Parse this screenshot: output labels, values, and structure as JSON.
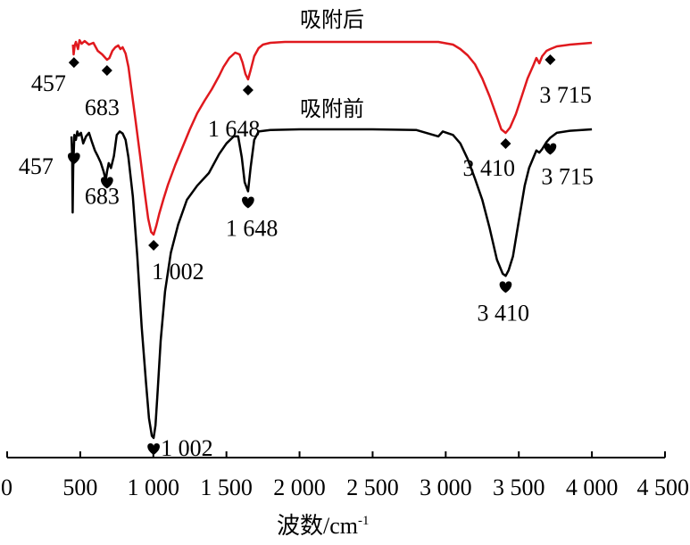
{
  "chart_data": {
    "type": "line",
    "xlabel": "波数/cm",
    "xlabel_sup": "-1",
    "ylabel": "",
    "xlim": [
      0,
      4500
    ],
    "xticks": [
      0,
      500,
      1000,
      1500,
      2000,
      2500,
      3000,
      3500,
      4000,
      4500
    ],
    "xtick_labels": [
      "0",
      "500",
      "1 000",
      "1 500",
      "2 000",
      "2 500",
      "3 000",
      "3 500",
      "4 000",
      "4 500"
    ],
    "grid": false,
    "series": [
      {
        "name": "吸附后",
        "color": "#e0191e",
        "marker": "diamond",
        "marker_color": "#000000",
        "points": [
          [
            450,
            0.05
          ],
          [
            455,
            0.16
          ],
          [
            462,
            0.06
          ],
          [
            470,
            0.02
          ],
          [
            485,
            0.1
          ],
          [
            495,
            0.0
          ],
          [
            510,
            0.04
          ],
          [
            530,
            0.01
          ],
          [
            560,
            0.05
          ],
          [
            590,
            0.03
          ],
          [
            620,
            0.12
          ],
          [
            650,
            0.16
          ],
          [
            683,
            0.22
          ],
          [
            700,
            0.2
          ],
          [
            720,
            0.12
          ],
          [
            740,
            0.08
          ],
          [
            760,
            0.06
          ],
          [
            775,
            0.1
          ],
          [
            790,
            0.08
          ],
          [
            810,
            0.15
          ],
          [
            830,
            0.3
          ],
          [
            850,
            0.55
          ],
          [
            880,
            0.92
          ],
          [
            910,
            1.3
          ],
          [
            940,
            1.7
          ],
          [
            965,
            2.0
          ],
          [
            985,
            2.15
          ],
          [
            1002,
            2.18
          ],
          [
            1020,
            2.08
          ],
          [
            1040,
            1.95
          ],
          [
            1070,
            1.78
          ],
          [
            1100,
            1.62
          ],
          [
            1150,
            1.4
          ],
          [
            1200,
            1.2
          ],
          [
            1250,
            1.0
          ],
          [
            1300,
            0.82
          ],
          [
            1350,
            0.68
          ],
          [
            1400,
            0.55
          ],
          [
            1450,
            0.4
          ],
          [
            1480,
            0.3
          ],
          [
            1520,
            0.2
          ],
          [
            1560,
            0.14
          ],
          [
            1590,
            0.16
          ],
          [
            1610,
            0.25
          ],
          [
            1630,
            0.38
          ],
          [
            1648,
            0.44
          ],
          [
            1665,
            0.34
          ],
          [
            1690,
            0.18
          ],
          [
            1720,
            0.09
          ],
          [
            1750,
            0.05
          ],
          [
            1800,
            0.03
          ],
          [
            1900,
            0.02
          ],
          [
            2000,
            0.02
          ],
          [
            2200,
            0.02
          ],
          [
            2400,
            0.02
          ],
          [
            2600,
            0.02
          ],
          [
            2800,
            0.02
          ],
          [
            2950,
            0.02
          ],
          [
            3050,
            0.05
          ],
          [
            3100,
            0.1
          ],
          [
            3150,
            0.17
          ],
          [
            3200,
            0.27
          ],
          [
            3250,
            0.43
          ],
          [
            3300,
            0.63
          ],
          [
            3350,
            0.86
          ],
          [
            3380,
            1.0
          ],
          [
            3410,
            1.04
          ],
          [
            3440,
            0.98
          ],
          [
            3480,
            0.83
          ],
          [
            3520,
            0.63
          ],
          [
            3560,
            0.43
          ],
          [
            3600,
            0.28
          ],
          [
            3620,
            0.2
          ],
          [
            3640,
            0.26
          ],
          [
            3660,
            0.18
          ],
          [
            3690,
            0.12
          ],
          [
            3715,
            0.1
          ],
          [
            3760,
            0.07
          ],
          [
            3850,
            0.05
          ],
          [
            4000,
            0.03
          ]
        ],
        "peaks": [
          {
            "x": 457,
            "label": "457"
          },
          {
            "x": 683,
            "label": "683"
          },
          {
            "x": 1002,
            "label": "1 002"
          },
          {
            "x": 1648,
            "label": "1 648"
          },
          {
            "x": 3410,
            "label": "3 410"
          },
          {
            "x": 3715,
            "label": "3 715"
          }
        ]
      },
      {
        "name": "吸附前",
        "color": "#000000",
        "marker": "heart",
        "marker_color": "#000000",
        "points": [
          [
            440,
            0.1
          ],
          [
            445,
            0.4
          ],
          [
            448,
            1.18
          ],
          [
            452,
            0.55
          ],
          [
            460,
            0.08
          ],
          [
            470,
            0.15
          ],
          [
            480,
            0.03
          ],
          [
            490,
            0.09
          ],
          [
            505,
            0.05
          ],
          [
            520,
            0.2
          ],
          [
            540,
            0.1
          ],
          [
            560,
            0.05
          ],
          [
            580,
            0.18
          ],
          [
            600,
            0.3
          ],
          [
            620,
            0.38
          ],
          [
            640,
            0.47
          ],
          [
            660,
            0.6
          ],
          [
            675,
            0.72
          ],
          [
            683,
            0.6
          ],
          [
            695,
            0.48
          ],
          [
            710,
            0.55
          ],
          [
            730,
            0.38
          ],
          [
            750,
            0.08
          ],
          [
            770,
            0.03
          ],
          [
            790,
            0.06
          ],
          [
            810,
            0.15
          ],
          [
            830,
            0.4
          ],
          [
            860,
            0.95
          ],
          [
            890,
            1.8
          ],
          [
            920,
            2.8
          ],
          [
            950,
            3.6
          ],
          [
            970,
            4.1
          ],
          [
            990,
            4.35
          ],
          [
            1002,
            4.38
          ],
          [
            1015,
            4.2
          ],
          [
            1030,
            3.7
          ],
          [
            1050,
            3.0
          ],
          [
            1080,
            2.3
          ],
          [
            1120,
            1.75
          ],
          [
            1170,
            1.35
          ],
          [
            1230,
            1.0
          ],
          [
            1300,
            0.8
          ],
          [
            1380,
            0.62
          ],
          [
            1450,
            0.35
          ],
          [
            1500,
            0.2
          ],
          [
            1550,
            0.1
          ],
          [
            1580,
            0.1
          ],
          [
            1605,
            0.4
          ],
          [
            1625,
            0.75
          ],
          [
            1648,
            0.88
          ],
          [
            1665,
            0.55
          ],
          [
            1690,
            0.15
          ],
          [
            1720,
            0.03
          ],
          [
            1800,
            0.01
          ],
          [
            2000,
            0.0
          ],
          [
            2200,
            0.0
          ],
          [
            2500,
            0.0
          ],
          [
            2800,
            0.01
          ],
          [
            2950,
            0.1
          ],
          [
            2980,
            0.03
          ],
          [
            3050,
            0.08
          ],
          [
            3100,
            0.2
          ],
          [
            3150,
            0.42
          ],
          [
            3200,
            0.7
          ],
          [
            3250,
            1.0
          ],
          [
            3300,
            1.4
          ],
          [
            3350,
            1.85
          ],
          [
            3390,
            2.05
          ],
          [
            3410,
            2.08
          ],
          [
            3430,
            2.0
          ],
          [
            3460,
            1.8
          ],
          [
            3500,
            1.3
          ],
          [
            3540,
            0.8
          ],
          [
            3570,
            0.55
          ],
          [
            3600,
            0.4
          ],
          [
            3620,
            0.3
          ],
          [
            3640,
            0.33
          ],
          [
            3660,
            0.28
          ],
          [
            3690,
            0.18
          ],
          [
            3715,
            0.12
          ],
          [
            3760,
            0.05
          ],
          [
            3850,
            0.02
          ],
          [
            4000,
            0.0
          ]
        ],
        "peaks": [
          {
            "x": 457,
            "label": "457"
          },
          {
            "x": 683,
            "label": "683"
          },
          {
            "x": 1002,
            "label": "1 002"
          },
          {
            "x": 1648,
            "label": "1 648"
          },
          {
            "x": 3410,
            "label": "3 410"
          },
          {
            "x": 3715,
            "label": "3 715"
          }
        ]
      }
    ]
  }
}
